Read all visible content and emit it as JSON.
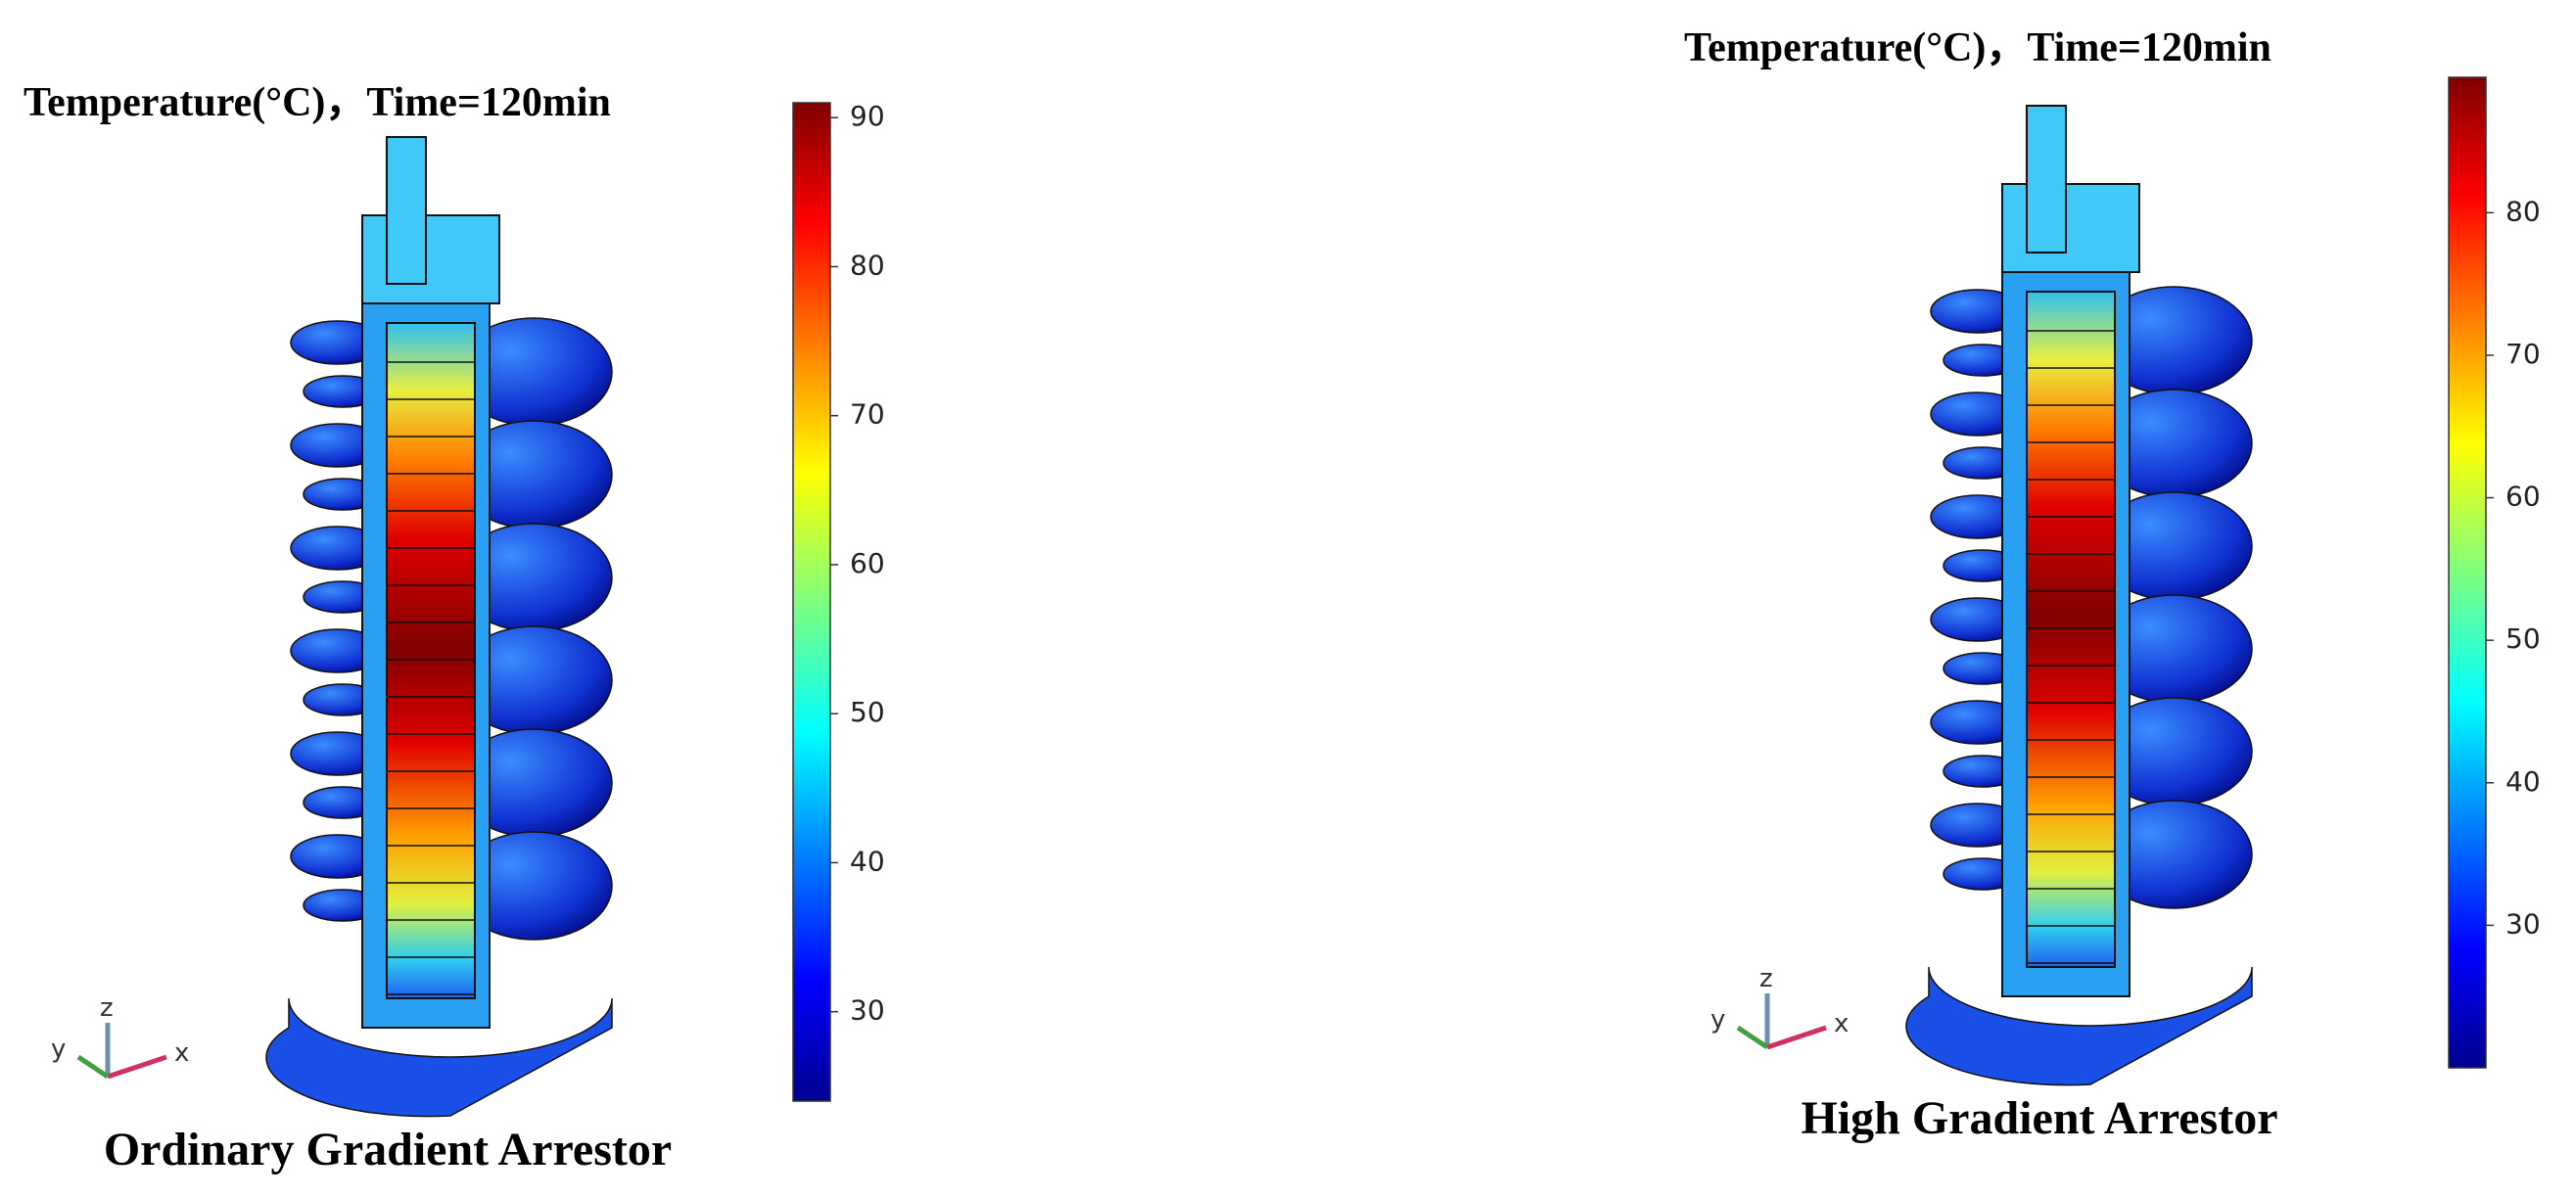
{
  "panels": [
    {
      "title": "Temperature(°C)，Time=120min",
      "caption": "Ordinary Gradient Arrestor",
      "colorbar": {
        "lim": [
          24,
          91
        ],
        "ticks": [
          30,
          40,
          50,
          60,
          70,
          80,
          90
        ]
      },
      "triad": {
        "x": "x",
        "y": "y",
        "z": "z"
      }
    },
    {
      "title": "Temperature(°C)，Time=120min",
      "caption": "High Gradient Arrestor",
      "colorbar": {
        "lim": [
          20,
          89.5
        ],
        "ticks": [
          30,
          40,
          50,
          60,
          70,
          80
        ]
      },
      "triad": {
        "x": "x",
        "y": "y",
        "z": "z"
      }
    }
  ]
}
